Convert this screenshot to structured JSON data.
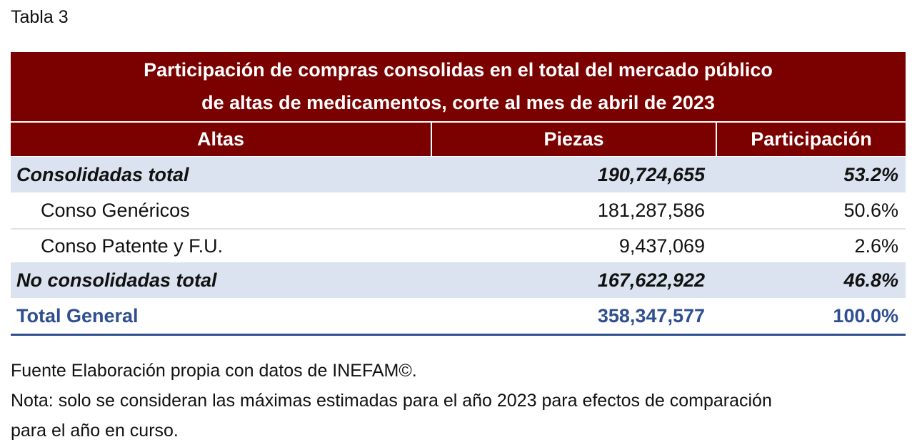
{
  "caption": "Tabla 3",
  "table": {
    "title": [
      "Participación de compras consolidas en el total del mercado público",
      "de altas de medicamentos, corte al mes de abril de 2023"
    ],
    "header": [
      "Altas",
      "Piezas",
      "Participación"
    ],
    "rows": [
      [
        "Consolidadas total",
        "190,724,655",
        "53.2%"
      ],
      [
        "Conso Genéricos",
        "181,287,586",
        "50.6%"
      ],
      [
        "Conso Patente y F.U.",
        "9,437,069",
        "2.6%"
      ],
      [
        "No consolidadas total",
        "167,622,922",
        "46.8%"
      ],
      [
        "Total General",
        "358,347,577",
        "100.0%"
      ]
    ]
  },
  "notes": [
    "Fuente Elaboración propia con datos de INEFAM©.",
    "Nota: solo se consideran las máximas estimadas para el año 2023 para efectos de comparación",
    "para el año en curso."
  ]
}
